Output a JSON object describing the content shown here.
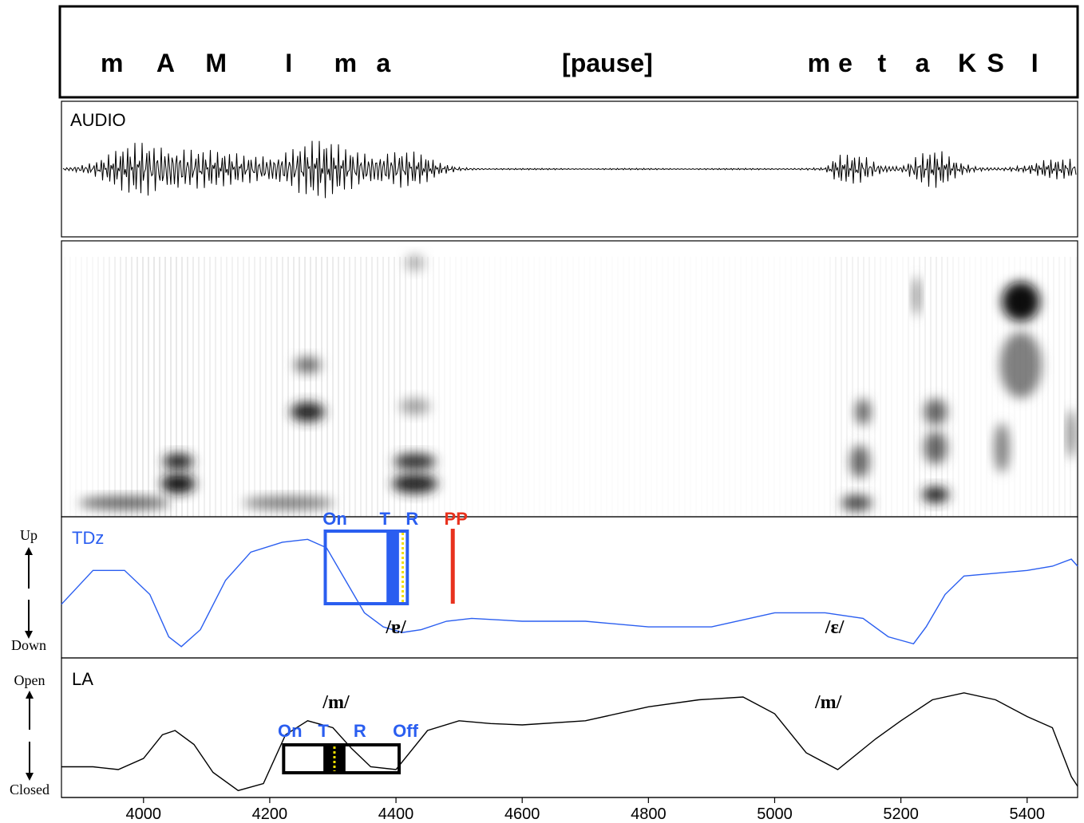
{
  "chart_data": {
    "type": "line",
    "x_axis": {
      "min": 3870,
      "max": 5480,
      "ticks": [
        4000,
        4200,
        4400,
        4600,
        4800,
        5000,
        5200,
        5400
      ]
    },
    "segments": [
      {
        "label": "m",
        "x": 3950
      },
      {
        "label": "A",
        "x": 4035
      },
      {
        "label": "M",
        "x": 4115
      },
      {
        "label": "I",
        "x": 4230
      },
      {
        "label": "m",
        "x": 4320
      },
      {
        "label": "a",
        "x": 4380
      },
      {
        "label": "[pause]",
        "x": 4735
      },
      {
        "label": "m",
        "x": 5070
      },
      {
        "label": "e",
        "x": 5112
      },
      {
        "label": "t",
        "x": 5170
      },
      {
        "label": "a",
        "x": 5234
      },
      {
        "label": "K",
        "x": 5305
      },
      {
        "label": "S",
        "x": 5350
      },
      {
        "label": "I",
        "x": 5412
      }
    ],
    "audio": {
      "label": "AUDIO",
      "envelope": [
        [
          3870,
          2
        ],
        [
          3920,
          10
        ],
        [
          3960,
          25
        ],
        [
          4000,
          40
        ],
        [
          4050,
          42
        ],
        [
          4080,
          30
        ],
        [
          4120,
          22
        ],
        [
          4160,
          20
        ],
        [
          4200,
          25
        ],
        [
          4240,
          35
        ],
        [
          4280,
          38
        ],
        [
          4320,
          30
        ],
        [
          4360,
          28
        ],
        [
          4400,
          30
        ],
        [
          4440,
          20
        ],
        [
          4470,
          8
        ],
        [
          4500,
          3
        ],
        [
          4550,
          1
        ],
        [
          5000,
          1
        ],
        [
          5080,
          2
        ],
        [
          5100,
          18
        ],
        [
          5140,
          20
        ],
        [
          5170,
          8
        ],
        [
          5200,
          5
        ],
        [
          5230,
          22
        ],
        [
          5260,
          25
        ],
        [
          5290,
          10
        ],
        [
          5320,
          4
        ],
        [
          5360,
          3
        ],
        [
          5400,
          5
        ],
        [
          5430,
          12
        ],
        [
          5470,
          15
        ],
        [
          5480,
          8
        ]
      ]
    },
    "spectrogram": {
      "blobs": [
        {
          "x": 4055,
          "f": 0.12,
          "w": 45,
          "h": 0.06,
          "d": 0.9
        },
        {
          "x": 4055,
          "f": 0.2,
          "w": 40,
          "h": 0.05,
          "d": 0.85
        },
        {
          "x": 3970,
          "f": 0.05,
          "w": 120,
          "h": 0.04,
          "d": 0.6
        },
        {
          "x": 4260,
          "f": 0.38,
          "w": 45,
          "h": 0.06,
          "d": 0.85
        },
        {
          "x": 4260,
          "f": 0.55,
          "w": 35,
          "h": 0.05,
          "d": 0.55
        },
        {
          "x": 4230,
          "f": 0.05,
          "w": 120,
          "h": 0.04,
          "d": 0.5
        },
        {
          "x": 4430,
          "f": 0.12,
          "w": 60,
          "h": 0.06,
          "d": 0.85
        },
        {
          "x": 4430,
          "f": 0.2,
          "w": 55,
          "h": 0.05,
          "d": 0.8
        },
        {
          "x": 4430,
          "f": 0.4,
          "w": 40,
          "h": 0.05,
          "d": 0.35
        },
        {
          "x": 4430,
          "f": 0.92,
          "w": 25,
          "h": 0.05,
          "d": 0.3
        },
        {
          "x": 5130,
          "f": 0.05,
          "w": 40,
          "h": 0.05,
          "d": 0.7
        },
        {
          "x": 5135,
          "f": 0.2,
          "w": 25,
          "h": 0.1,
          "d": 0.6
        },
        {
          "x": 5140,
          "f": 0.38,
          "w": 20,
          "h": 0.08,
          "d": 0.6
        },
        {
          "x": 5255,
          "f": 0.08,
          "w": 35,
          "h": 0.05,
          "d": 0.85
        },
        {
          "x": 5255,
          "f": 0.25,
          "w": 30,
          "h": 0.1,
          "d": 0.6
        },
        {
          "x": 5255,
          "f": 0.38,
          "w": 30,
          "h": 0.08,
          "d": 0.6
        },
        {
          "x": 5225,
          "f": 0.8,
          "w": 10,
          "h": 0.12,
          "d": 0.5
        },
        {
          "x": 5390,
          "f": 0.78,
          "w": 50,
          "h": 0.12,
          "d": 0.95
        },
        {
          "x": 5390,
          "f": 0.55,
          "w": 55,
          "h": 0.2,
          "d": 0.5
        },
        {
          "x": 5360,
          "f": 0.25,
          "w": 20,
          "h": 0.15,
          "d": 0.5
        },
        {
          "x": 5470,
          "f": 0.3,
          "w": 10,
          "h": 0.15,
          "d": 0.6
        }
      ]
    },
    "tdz": {
      "label": "TDz",
      "axis_top": "Up",
      "axis_bottom": "Down",
      "color": "#2a5ef0",
      "points": [
        [
          3870,
          0.62
        ],
        [
          3920,
          0.38
        ],
        [
          3970,
          0.38
        ],
        [
          4010,
          0.55
        ],
        [
          4040,
          0.85
        ],
        [
          4060,
          0.92
        ],
        [
          4090,
          0.8
        ],
        [
          4130,
          0.45
        ],
        [
          4170,
          0.25
        ],
        [
          4220,
          0.18
        ],
        [
          4260,
          0.16
        ],
        [
          4290,
          0.22
        ],
        [
          4320,
          0.45
        ],
        [
          4350,
          0.68
        ],
        [
          4380,
          0.78
        ],
        [
          4410,
          0.82
        ],
        [
          4440,
          0.8
        ],
        [
          4480,
          0.74
        ],
        [
          4520,
          0.72
        ],
        [
          4600,
          0.74
        ],
        [
          4700,
          0.74
        ],
        [
          4800,
          0.78
        ],
        [
          4900,
          0.78
        ],
        [
          5000,
          0.68
        ],
        [
          5080,
          0.68
        ],
        [
          5140,
          0.72
        ],
        [
          5180,
          0.85
        ],
        [
          5220,
          0.9
        ],
        [
          5240,
          0.78
        ],
        [
          5270,
          0.55
        ],
        [
          5300,
          0.42
        ],
        [
          5350,
          0.4
        ],
        [
          5400,
          0.38
        ],
        [
          5440,
          0.35
        ],
        [
          5470,
          0.3
        ],
        [
          5480,
          0.35
        ]
      ],
      "gesture": {
        "on": {
          "label": "On",
          "x": 4288
        },
        "t": {
          "label": "T",
          "x": 4385
        },
        "r": {
          "label": "R",
          "x": 4418
        },
        "pp": {
          "label": "PP",
          "x": 4490,
          "color": "#e8321e"
        }
      },
      "phones": [
        {
          "label": "/ɐ/",
          "x": 4400
        },
        {
          "label": "/ɛ/",
          "x": 5095
        }
      ]
    },
    "la": {
      "label": "LA",
      "axis_top": "Open",
      "axis_bottom": "Closed",
      "color": "#000000",
      "points": [
        [
          3870,
          0.78
        ],
        [
          3920,
          0.78
        ],
        [
          3960,
          0.8
        ],
        [
          4000,
          0.72
        ],
        [
          4030,
          0.55
        ],
        [
          4050,
          0.52
        ],
        [
          4080,
          0.62
        ],
        [
          4110,
          0.82
        ],
        [
          4150,
          0.95
        ],
        [
          4190,
          0.9
        ],
        [
          4225,
          0.55
        ],
        [
          4260,
          0.45
        ],
        [
          4300,
          0.5
        ],
        [
          4330,
          0.65
        ],
        [
          4360,
          0.78
        ],
        [
          4400,
          0.8
        ],
        [
          4450,
          0.52
        ],
        [
          4500,
          0.45
        ],
        [
          4550,
          0.47
        ],
        [
          4600,
          0.48
        ],
        [
          4700,
          0.45
        ],
        [
          4800,
          0.35
        ],
        [
          4880,
          0.3
        ],
        [
          4950,
          0.28
        ],
        [
          5000,
          0.4
        ],
        [
          5050,
          0.68
        ],
        [
          5100,
          0.8
        ],
        [
          5160,
          0.58
        ],
        [
          5200,
          0.45
        ],
        [
          5250,
          0.3
        ],
        [
          5300,
          0.25
        ],
        [
          5350,
          0.3
        ],
        [
          5400,
          0.42
        ],
        [
          5440,
          0.5
        ],
        [
          5470,
          0.85
        ],
        [
          5480,
          0.92
        ]
      ],
      "gesture": {
        "on": {
          "label": "On",
          "x": 4222
        },
        "t": {
          "label": "T",
          "x": 4285
        },
        "r": {
          "label": "R",
          "x": 4320
        },
        "off": {
          "label": "Off",
          "x": 4405
        }
      },
      "phones": [
        {
          "label": "/m/",
          "x": 4305
        },
        {
          "label": "/m/",
          "x": 5085
        }
      ]
    }
  }
}
